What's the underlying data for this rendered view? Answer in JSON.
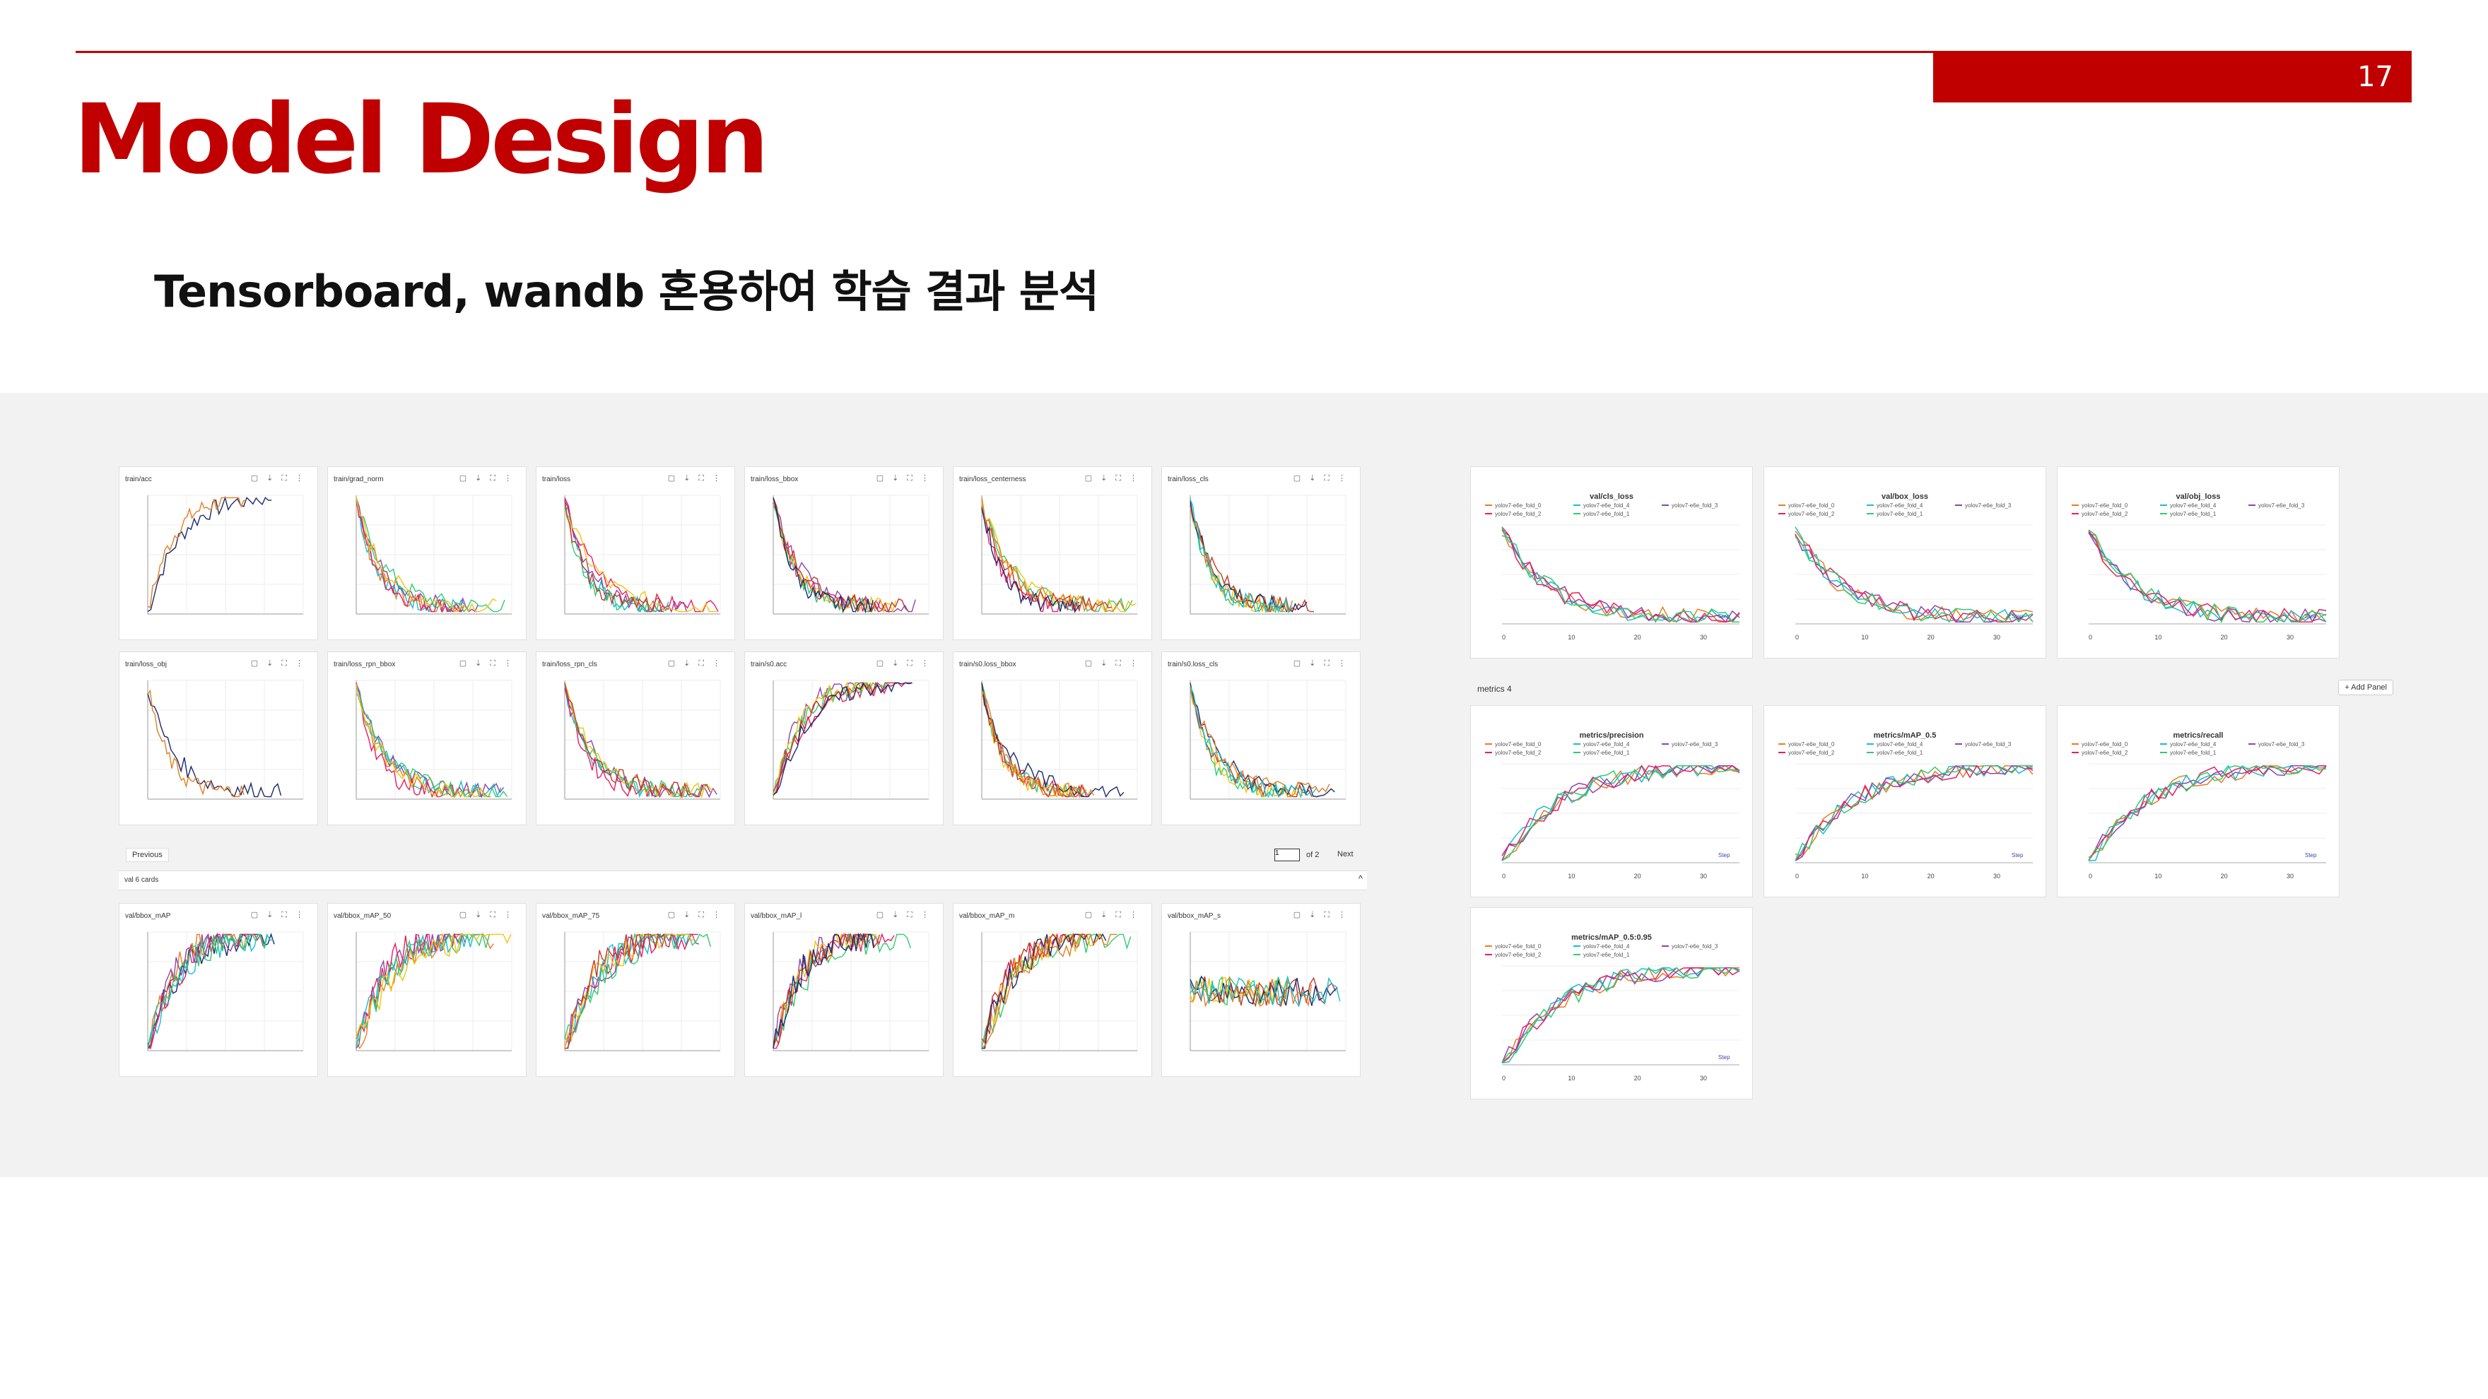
{
  "slide": {
    "page_number": "17",
    "title": "Model Design",
    "subtitle": "Tensorboard, wandb 혼용하여 학습 결과 분석",
    "accent_color": "#c00000"
  },
  "tensorboard": {
    "row1": [
      "train/acc",
      "train/grad_norm",
      "train/loss",
      "train/loss_bbox",
      "train/loss_centerness",
      "train/loss_cls"
    ],
    "row2": [
      "train/loss_obj",
      "train/loss_rpn_bbox",
      "train/loss_rpn_cls",
      "train/s0.acc",
      "train/s0.loss_bbox",
      "train/s0.loss_cls"
    ],
    "row3": [
      "val/bbox_mAP",
      "val/bbox_mAP_50",
      "val/bbox_mAP_75",
      "val/bbox_mAP_l",
      "val/bbox_mAP_m",
      "val/bbox_mAP_s"
    ],
    "pager": {
      "previous": "Previous",
      "page": "1",
      "of": "of 2",
      "next": "Next"
    },
    "group_label": "val  6 cards",
    "collapse_glyph": "^"
  },
  "wandb": {
    "row1": [
      "val/cls_loss",
      "val/box_loss",
      "val/obj_loss"
    ],
    "section_label": "metrics  4",
    "add_panel": "+ Add Panel",
    "row2": [
      "metrics/precision",
      "metrics/mAP_0.5",
      "metrics/recall"
    ],
    "row3": [
      "metrics/mAP_0.5:0.95"
    ],
    "legend": [
      "yolov7-e6e_fold_0",
      "yolov7-e6e_fold_4",
      "yolov7-e6e_fold_3",
      "yolov7-e6e_fold_2",
      "yolov7-e6e_fold_1"
    ],
    "step_label": "Step",
    "x_ticks": [
      "0",
      "10",
      "20",
      "30"
    ]
  }
}
